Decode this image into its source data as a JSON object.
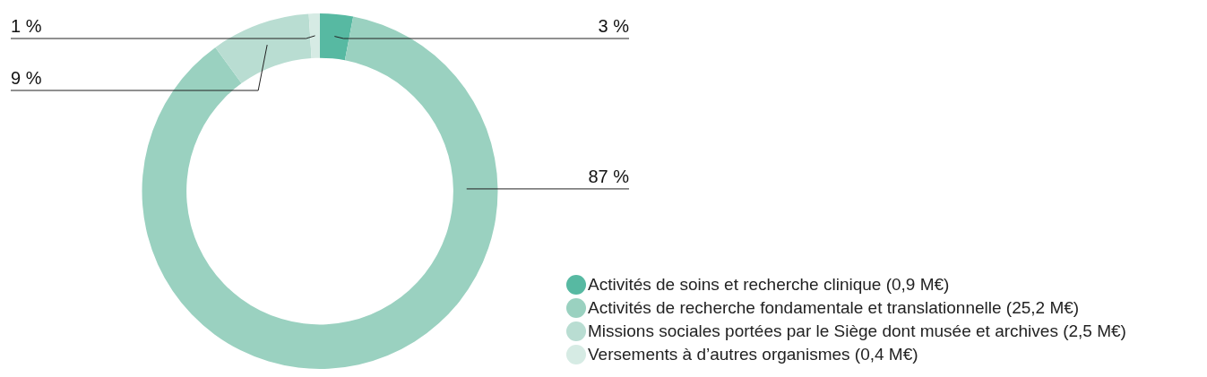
{
  "chart_data": {
    "type": "donut",
    "categories": [
      "Activités de soins et recherche clinique (0,9 M€)",
      "Activités de recherche fondamentale et translationnelle (25,2 M€)",
      "Missions sociales portées par le Siège dont musée et archives (2,5 M€)",
      "Versements à d’autres organismes (0,4 M€)"
    ],
    "values": [
      3,
      87,
      9,
      1
    ],
    "colors": [
      "#57b9a2",
      "#9ad1c0",
      "#b9ddd2",
      "#d6ebe4"
    ],
    "value_labels": [
      "3 %",
      "87 %",
      "9 %",
      "1 %"
    ],
    "legend": "bottom right"
  }
}
